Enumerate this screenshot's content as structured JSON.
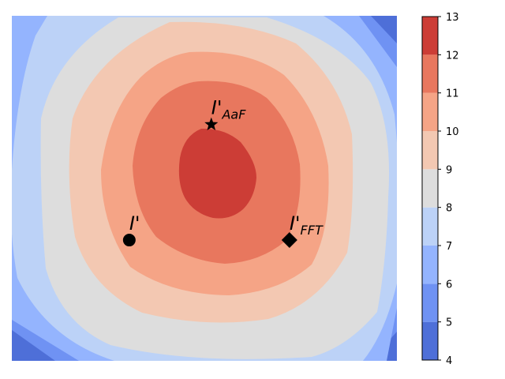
{
  "chart_data": {
    "type": "heatmap",
    "title": "",
    "xlabel": "",
    "ylabel": "",
    "colorbar": {
      "min": 4,
      "max": 13,
      "ticks": [
        "4",
        "5",
        "6",
        "7",
        "8",
        "9",
        "10",
        "11",
        "12",
        "13"
      ],
      "levels": [
        {
          "from": 4,
          "to": 5,
          "color": "#4e6fd8"
        },
        {
          "from": 5,
          "to": 6,
          "color": "#6f92f3"
        },
        {
          "from": 6,
          "to": 7,
          "color": "#94b4fe"
        },
        {
          "from": 7,
          "to": 8,
          "color": "#bcd2f7"
        },
        {
          "from": 8,
          "to": 9,
          "color": "#dddddd"
        },
        {
          "from": 9,
          "to": 10,
          "color": "#f3c8b2"
        },
        {
          "from": 10,
          "to": 11,
          "color": "#f5a486"
        },
        {
          "from": 11,
          "to": 12,
          "color": "#e8775e"
        },
        {
          "from": 12,
          "to": 13,
          "color": "#cc3d36"
        }
      ]
    },
    "markers": [
      {
        "name": "I'",
        "sub": "",
        "symbol": "circle",
        "x": 0.305,
        "y": 0.65
      },
      {
        "name": "I'",
        "sub": "AaF",
        "symbol": "star",
        "x": 0.518,
        "y": 0.315
      },
      {
        "name": "I'",
        "sub": "FFT",
        "symbol": "diamond",
        "x": 0.721,
        "y": 0.65
      }
    ]
  }
}
